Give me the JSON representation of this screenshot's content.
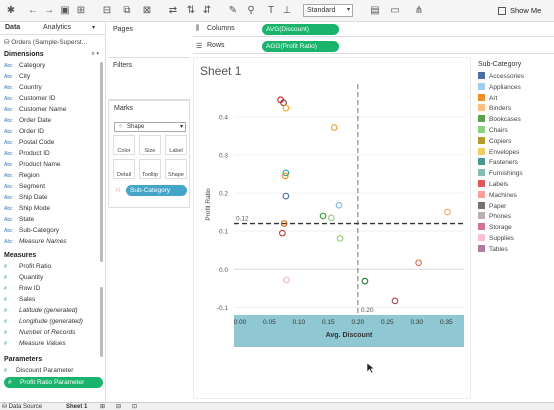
{
  "toolbar": {
    "view_select": "Standard",
    "show_me_label": "Show Me"
  },
  "left_pane": {
    "tab_data": "Data",
    "tab_analytics": "Analytics",
    "data_source": "Orders (Sample-Superst...",
    "dimensions_title": "Dimensions",
    "dimensions": [
      {
        "type": "Abc",
        "label": "Category",
        "italic": false
      },
      {
        "type": "Abc",
        "label": "City",
        "italic": false
      },
      {
        "type": "Abc",
        "label": "Country",
        "italic": false
      },
      {
        "type": "Abc",
        "label": "Customer ID",
        "italic": false
      },
      {
        "type": "Abc",
        "label": "Customer Name",
        "italic": false
      },
      {
        "type": "Abc",
        "label": "Order Date",
        "italic": false
      },
      {
        "type": "Abc",
        "label": "Order ID",
        "italic": false
      },
      {
        "type": "Abc",
        "label": "Postal Code",
        "italic": false
      },
      {
        "type": "Abc",
        "label": "Product ID",
        "italic": false
      },
      {
        "type": "Abc",
        "label": "Product Name",
        "italic": false
      },
      {
        "type": "Abc",
        "label": "Region",
        "italic": false
      },
      {
        "type": "Abc",
        "label": "Segment",
        "italic": false
      },
      {
        "type": "Abc",
        "label": "Ship Date",
        "italic": false
      },
      {
        "type": "Abc",
        "label": "Ship Mode",
        "italic": false
      },
      {
        "type": "Abc",
        "label": "State",
        "italic": false
      },
      {
        "type": "Abc",
        "label": "Sub-Category",
        "italic": false
      },
      {
        "type": "Abc",
        "label": "Measure Names",
        "italic": true
      }
    ],
    "measures_title": "Measures",
    "measures": [
      {
        "label": "Profit Ratio",
        "italic": false
      },
      {
        "label": "Quantity",
        "italic": false
      },
      {
        "label": "Row ID",
        "italic": false
      },
      {
        "label": "Sales",
        "italic": false
      },
      {
        "label": "Latitude (generated)",
        "italic": true
      },
      {
        "label": "Longitude (generated)",
        "italic": true
      },
      {
        "label": "Number of Records",
        "italic": true
      },
      {
        "label": "Measure Values",
        "italic": true
      }
    ],
    "parameters_title": "Parameters",
    "parameters": [
      {
        "label": "Discount Parameter",
        "selected": false
      },
      {
        "label": "Profit Ratio Parameter",
        "selected": true
      }
    ]
  },
  "panels": {
    "pages": "Pages",
    "filters": "Filters",
    "marks": "Marks",
    "marks_type": "Shape",
    "marks_buttons": [
      "Color",
      "Size",
      "Label",
      "Detail",
      "Tooltip",
      "Shape"
    ],
    "marks_pill": "Sub-Category"
  },
  "shelves": {
    "columns_label": "Columns",
    "columns_pill": "AVG(Discount)",
    "rows_label": "Rows",
    "rows_pill": "AGG(Profit Ratio)"
  },
  "sheet": {
    "title": "Sheet 1"
  },
  "chart_data": {
    "type": "scatter",
    "xlabel": "Avg. Discount",
    "ylabel": "Profit Ratio",
    "xlim": [
      -0.01,
      0.38
    ],
    "ylim": [
      -0.12,
      0.46
    ],
    "xticks": [
      "0.00",
      "0.05",
      "0.10",
      "0.15",
      "0.20",
      "0.25",
      "0.30",
      "0.35"
    ],
    "yticks": [
      "-0.1",
      "0.0",
      "0.1",
      "0.2",
      "0.3",
      "0.4"
    ],
    "reference_lines": {
      "x_value": 0.2,
      "x_label": "0.20",
      "y_value": 0.12,
      "y_label": "0.12"
    },
    "points": [
      {
        "name": "Labels",
        "x": 0.069,
        "y": 0.445,
        "color": "#d62728"
      },
      {
        "name": "Paper",
        "x": 0.074,
        "y": 0.437,
        "color": "#7f3c3c"
      },
      {
        "name": "Envelopes",
        "x": 0.078,
        "y": 0.423,
        "color": "#ff9f1c"
      },
      {
        "name": "Copiers",
        "x": 0.16,
        "y": 0.372,
        "color": "#e0a030"
      },
      {
        "name": "Fasteners",
        "x": 0.078,
        "y": 0.253,
        "color": "#17a589"
      },
      {
        "name": "Binders",
        "x": 0.077,
        "y": 0.245,
        "color": "#ff7f0e"
      },
      {
        "name": "Accessories",
        "x": 0.078,
        "y": 0.192,
        "color": "#4a6fa5"
      },
      {
        "name": "Appliances",
        "x": 0.168,
        "y": 0.168,
        "color": "#7fb8e6"
      },
      {
        "name": "Furnishings",
        "x": 0.141,
        "y": 0.14,
        "color": "#2ca02c"
      },
      {
        "name": "Art",
        "x": 0.075,
        "y": 0.12,
        "color": "#d95f02"
      },
      {
        "name": "Phones",
        "x": 0.155,
        "y": 0.135,
        "color": "#9fc08f"
      },
      {
        "name": "Storage",
        "x": 0.072,
        "y": 0.095,
        "color": "#c0392b"
      },
      {
        "name": "Chairs",
        "x": 0.17,
        "y": 0.081,
        "color": "#8fd16a"
      },
      {
        "name": "Supplies",
        "x": 0.352,
        "y": 0.15,
        "color": "#f4a460"
      },
      {
        "name": "Tables",
        "x": 0.303,
        "y": 0.017,
        "color": "#e06a50"
      },
      {
        "name": "Bookcases",
        "x": 0.079,
        "y": -0.028,
        "color": "#f4b6b6"
      },
      {
        "name": "Machines",
        "x": 0.212,
        "y": -0.031,
        "color": "#1b7f2a"
      },
      {
        "name": "Binders-2",
        "x": 0.263,
        "y": -0.083,
        "color": "#b04050"
      }
    ]
  },
  "legend": {
    "title": "Sub-Category",
    "items": [
      {
        "label": "Accessories",
        "color": "#4a6fa5"
      },
      {
        "label": "Appliances",
        "color": "#a6cde8"
      },
      {
        "label": "Art",
        "color": "#f28e2b"
      },
      {
        "label": "Binders",
        "color": "#ffbe7d"
      },
      {
        "label": "Bookcases",
        "color": "#59a14f"
      },
      {
        "label": "Chairs",
        "color": "#8cd17d"
      },
      {
        "label": "Copiers",
        "color": "#b6992d"
      },
      {
        "label": "Envelopes",
        "color": "#f1ce63"
      },
      {
        "label": "Fasteners",
        "color": "#499894"
      },
      {
        "label": "Furnishings",
        "color": "#86bcb6"
      },
      {
        "label": "Labels",
        "color": "#e15759"
      },
      {
        "label": "Machines",
        "color": "#ff9d9a"
      },
      {
        "label": "Paper",
        "color": "#79706e"
      },
      {
        "label": "Phones",
        "color": "#bab0ac"
      },
      {
        "label": "Storage",
        "color": "#d37295"
      },
      {
        "label": "Supplies",
        "color": "#fabfd2"
      },
      {
        "label": "Tables",
        "color": "#b07aa1"
      }
    ]
  },
  "bottom_tabs": {
    "data_source": "Data Source",
    "sheet": "Sheet 1"
  }
}
